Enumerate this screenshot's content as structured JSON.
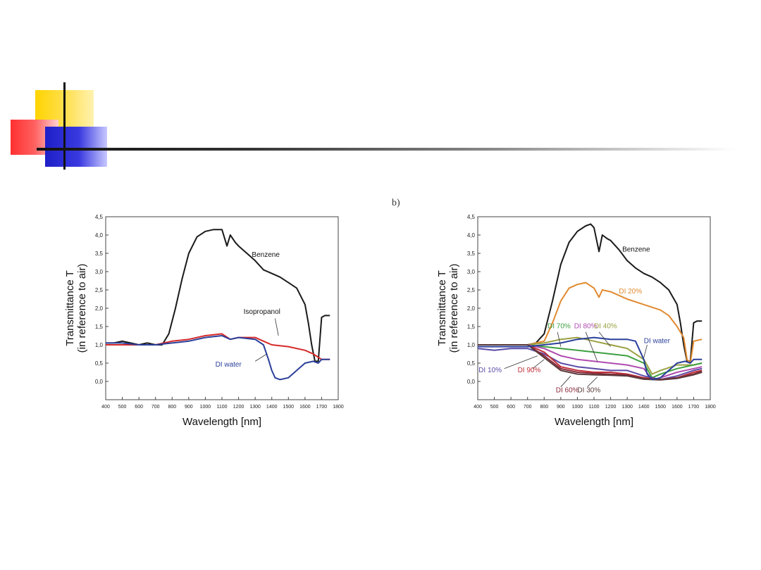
{
  "panel_letter": "b)",
  "colors": {
    "benzene": "#1a1a1a",
    "isopropanol": "#d42a2a",
    "di_water": "#2a3f9a",
    "di20": "#e08a30",
    "di40": "#9aa040",
    "di70": "#3fa040",
    "di80": "#b04cb0",
    "di10": "#5a4aa8",
    "di90": "#c0303a",
    "di60": "#8a2a3a",
    "di30": "#5a3a3a"
  },
  "chart_data": [
    {
      "type": "line",
      "title": "",
      "xlabel": "Wavelength [nm]",
      "ylabel_line1": "Transmittance T",
      "ylabel_line2": "(in reference to air)",
      "xlim": [
        400,
        1800
      ],
      "ylim": [
        -0.5,
        4.5
      ],
      "xticks": [
        "400",
        "500",
        "600",
        "700",
        "800",
        "900",
        "1000",
        "1100",
        "1200",
        "1300",
        "1400",
        "1500",
        "1600",
        "1700",
        "1800"
      ],
      "yticks": [
        "0,0",
        "0,5",
        "1,0",
        "1,5",
        "2,0",
        "2,5",
        "3,0",
        "3,5",
        "4,0",
        "4,5"
      ],
      "series": [
        {
          "name": "Benzene",
          "color": "#1a1a1a",
          "x": [
            400,
            450,
            500,
            550,
            600,
            650,
            700,
            740,
            780,
            820,
            860,
            900,
            950,
            1000,
            1050,
            1100,
            1130,
            1150,
            1180,
            1200,
            1250,
            1300,
            1350,
            1400,
            1450,
            1500,
            1550,
            1600,
            1620,
            1640,
            1660,
            1680,
            1700,
            1720,
            1750
          ],
          "y": [
            1.05,
            1.05,
            1.1,
            1.05,
            1.0,
            1.05,
            1.0,
            1.0,
            1.3,
            2.0,
            2.8,
            3.5,
            3.95,
            4.1,
            4.15,
            4.15,
            3.7,
            4.0,
            3.8,
            3.7,
            3.5,
            3.3,
            3.05,
            2.95,
            2.85,
            2.7,
            2.55,
            2.1,
            1.6,
            1.0,
            0.55,
            0.55,
            1.75,
            1.8,
            1.8
          ]
        },
        {
          "name": "Isopropanol",
          "color": "#d42a2a",
          "x": [
            400,
            500,
            600,
            700,
            800,
            900,
            1000,
            1100,
            1150,
            1200,
            1300,
            1400,
            1500,
            1600,
            1650,
            1700,
            1750
          ],
          "y": [
            1.0,
            1.0,
            1.0,
            1.0,
            1.1,
            1.15,
            1.25,
            1.3,
            1.15,
            1.2,
            1.2,
            1.0,
            0.95,
            0.85,
            0.75,
            0.6,
            0.6
          ]
        },
        {
          "name": "DI water",
          "color": "#2a3f9a",
          "x": [
            400,
            500,
            600,
            700,
            800,
            900,
            1000,
            1100,
            1150,
            1200,
            1300,
            1350,
            1380,
            1400,
            1420,
            1450,
            1500,
            1550,
            1600,
            1650,
            1680,
            1700,
            1750
          ],
          "y": [
            1.05,
            1.05,
            1.0,
            1.0,
            1.05,
            1.1,
            1.2,
            1.25,
            1.15,
            1.2,
            1.15,
            1.0,
            0.6,
            0.3,
            0.1,
            0.05,
            0.1,
            0.3,
            0.5,
            0.55,
            0.5,
            0.6,
            0.6
          ]
        }
      ],
      "annotations": [
        "Benzene",
        "Isopropanol",
        "DI water"
      ]
    },
    {
      "type": "line",
      "title": "",
      "xlabel": "Wavelength [nm]",
      "ylabel_line1": "Transmittance T",
      "ylabel_line2": "(in reference to air)",
      "xlim": [
        400,
        1800
      ],
      "ylim": [
        -0.5,
        4.5
      ],
      "xticks": [
        "400",
        "500",
        "600",
        "700",
        "800",
        "900",
        "1000",
        "1100",
        "1200",
        "1300",
        "1400",
        "1500",
        "1600",
        "1700",
        "1800"
      ],
      "yticks": [
        "0,0",
        "0,5",
        "1,0",
        "1,5",
        "2,0",
        "2,5",
        "3,0",
        "3,5",
        "4,0",
        "4,5"
      ],
      "series": [
        {
          "name": "Benzene",
          "color": "#1a1a1a",
          "x": [
            400,
            500,
            600,
            700,
            750,
            800,
            850,
            900,
            950,
            1000,
            1050,
            1080,
            1100,
            1130,
            1150,
            1180,
            1200,
            1250,
            1300,
            1350,
            1400,
            1450,
            1500,
            1550,
            1600,
            1620,
            1640,
            1660,
            1680,
            1700,
            1720,
            1750
          ],
          "y": [
            1.0,
            1.0,
            1.0,
            1.0,
            1.05,
            1.3,
            2.2,
            3.2,
            3.8,
            4.1,
            4.25,
            4.3,
            4.2,
            3.55,
            4.0,
            3.9,
            3.85,
            3.6,
            3.3,
            3.1,
            2.95,
            2.85,
            2.7,
            2.5,
            2.1,
            1.6,
            1.0,
            0.55,
            0.55,
            1.6,
            1.65,
            1.65
          ]
        },
        {
          "name": "DI 20%",
          "color": "#e08a30",
          "x": [
            400,
            500,
            600,
            700,
            800,
            850,
            900,
            950,
            1000,
            1050,
            1100,
            1130,
            1150,
            1200,
            1300,
            1400,
            1500,
            1550,
            1600,
            1640,
            1660,
            1680,
            1700,
            1750
          ],
          "y": [
            1.0,
            1.0,
            1.0,
            1.0,
            1.1,
            1.6,
            2.2,
            2.55,
            2.65,
            2.7,
            2.55,
            2.3,
            2.5,
            2.45,
            2.25,
            2.1,
            1.95,
            1.8,
            1.5,
            1.2,
            0.6,
            0.5,
            1.1,
            1.15
          ]
        },
        {
          "name": "DI 40%",
          "color": "#9aa040",
          "x": [
            400,
            500,
            600,
            700,
            800,
            900,
            1000,
            1100,
            1200,
            1300,
            1400,
            1450,
            1500,
            1600,
            1700,
            1750
          ],
          "y": [
            1.0,
            1.0,
            1.0,
            1.0,
            1.05,
            1.15,
            1.2,
            1.1,
            1.0,
            0.9,
            0.6,
            0.2,
            0.3,
            0.45,
            0.45,
            0.5
          ]
        },
        {
          "name": "DI 70%",
          "color": "#3fa040",
          "x": [
            400,
            500,
            600,
            700,
            800,
            900,
            1000,
            1100,
            1200,
            1300,
            1400,
            1450,
            1500,
            1600,
            1700,
            1750
          ],
          "y": [
            1.0,
            1.0,
            1.0,
            1.0,
            0.95,
            0.9,
            0.85,
            0.8,
            0.75,
            0.7,
            0.5,
            0.1,
            0.2,
            0.35,
            0.45,
            0.5
          ]
        },
        {
          "name": "DI 80%",
          "color": "#b04cb0",
          "x": [
            400,
            500,
            600,
            700,
            800,
            900,
            1000,
            1100,
            1200,
            1300,
            1400,
            1450,
            1500,
            1600,
            1700,
            1750
          ],
          "y": [
            1.0,
            1.0,
            1.0,
            1.0,
            0.9,
            0.7,
            0.6,
            0.55,
            0.5,
            0.45,
            0.35,
            0.05,
            0.1,
            0.25,
            0.35,
            0.4
          ]
        },
        {
          "name": "DI 10%",
          "color": "#5a4aa8",
          "x": [
            400,
            500,
            600,
            700,
            800,
            900,
            1000,
            1100,
            1200,
            1300,
            1400,
            1500,
            1600,
            1700,
            1750
          ],
          "y": [
            0.9,
            0.85,
            0.9,
            0.9,
            0.75,
            0.5,
            0.4,
            0.35,
            0.3,
            0.3,
            0.15,
            0.05,
            0.15,
            0.3,
            0.35
          ]
        },
        {
          "name": "DI 90%",
          "color": "#c0303a",
          "x": [
            400,
            500,
            600,
            700,
            800,
            900,
            1000,
            1100,
            1200,
            1300,
            1400,
            1500,
            1600,
            1700,
            1750
          ],
          "y": [
            1.0,
            1.0,
            1.0,
            1.0,
            0.8,
            0.4,
            0.3,
            0.25,
            0.25,
            0.2,
            0.1,
            0.05,
            0.1,
            0.25,
            0.3
          ]
        },
        {
          "name": "DI 60%",
          "color": "#8a2a3a",
          "x": [
            400,
            500,
            600,
            700,
            800,
            900,
            1000,
            1100,
            1200,
            1300,
            1400,
            1500,
            1600,
            1700,
            1750
          ],
          "y": [
            1.0,
            1.0,
            1.0,
            1.0,
            0.7,
            0.35,
            0.25,
            0.22,
            0.2,
            0.18,
            0.08,
            0.05,
            0.1,
            0.2,
            0.28
          ]
        },
        {
          "name": "DI 30%",
          "color": "#5a3a3a",
          "x": [
            400,
            500,
            600,
            700,
            800,
            900,
            1000,
            1100,
            1200,
            1300,
            1400,
            1500,
            1600,
            1700,
            1750
          ],
          "y": [
            1.0,
            1.0,
            1.0,
            1.0,
            0.65,
            0.3,
            0.2,
            0.18,
            0.17,
            0.15,
            0.06,
            0.04,
            0.08,
            0.18,
            0.25
          ]
        },
        {
          "name": "DI water",
          "color": "#2a3f9a",
          "x": [
            400,
            500,
            600,
            700,
            800,
            900,
            1000,
            1100,
            1200,
            1300,
            1350,
            1400,
            1420,
            1450,
            1500,
            1550,
            1600,
            1650,
            1680,
            1700,
            1750
          ],
          "y": [
            0.95,
            0.95,
            0.95,
            0.95,
            1.0,
            1.05,
            1.15,
            1.2,
            1.15,
            1.15,
            1.1,
            0.6,
            0.2,
            0.05,
            0.1,
            0.3,
            0.5,
            0.55,
            0.5,
            0.6,
            0.6
          ]
        }
      ],
      "annotations": [
        "Benzene",
        "DI 20%",
        "DI 70%",
        "DI 80%",
        "DI 40%",
        "DI water",
        "DI 10%",
        "DI 90%",
        "DI 60%",
        "DI 30%"
      ]
    }
  ]
}
